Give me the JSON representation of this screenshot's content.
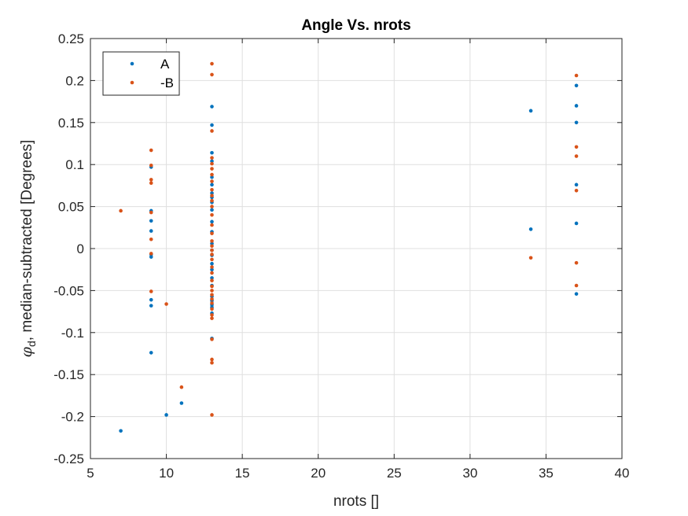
{
  "chart_data": {
    "type": "scatter",
    "title": "Angle Vs. nrots",
    "xlabel": "nrots []",
    "ylabel_symbol": "φ",
    "ylabel_subscript": "d",
    "ylabel_rest": ", median-subtracted [Degrees]",
    "xlim": [
      5,
      40
    ],
    "ylim": [
      -0.25,
      0.25
    ],
    "xticks": [
      5,
      10,
      15,
      20,
      25,
      30,
      35,
      40
    ],
    "yticks": [
      -0.25,
      -0.2,
      -0.15,
      -0.1,
      -0.05,
      0,
      0.05,
      0.1,
      0.15,
      0.2,
      0.25
    ],
    "xtick_labels": [
      "5",
      "10",
      "15",
      "20",
      "25",
      "30",
      "35",
      "40"
    ],
    "ytick_labels": [
      "-0.25",
      "-0.2",
      "-0.15",
      "-0.1",
      "-0.05",
      "0",
      "0.05",
      "0.1",
      "0.15",
      "0.2",
      "0.25"
    ],
    "grid": true,
    "legend_position": "top-left",
    "series": [
      {
        "name": "A",
        "color": "#0072BD",
        "x": [
          7,
          9,
          9,
          9,
          9,
          9,
          9,
          9,
          9,
          9,
          10,
          11,
          13,
          13,
          13,
          13,
          13,
          13,
          13,
          13,
          13,
          13,
          13,
          13,
          13,
          13,
          13,
          13,
          13,
          13,
          13,
          13,
          13,
          13,
          13,
          13,
          13,
          34,
          34,
          37,
          37,
          37,
          37,
          37,
          37
        ],
        "y": [
          -0.217,
          0.045,
          0.033,
          0.021,
          -0.007,
          -0.01,
          -0.061,
          -0.068,
          -0.124,
          0.097,
          -0.198,
          -0.184,
          0.169,
          0.147,
          0.114,
          0.104,
          0.085,
          0.076,
          0.066,
          0.061,
          0.055,
          0.046,
          0.032,
          0.02,
          0.006,
          -0.002,
          -0.008,
          -0.018,
          -0.025,
          -0.035,
          -0.044,
          -0.057,
          -0.062,
          -0.067,
          -0.07,
          -0.077,
          -0.107,
          0.164,
          0.023,
          0.194,
          0.17,
          0.15,
          0.076,
          0.03,
          -0.054
        ]
      },
      {
        "name": "-B",
        "color": "#D95319",
        "x": [
          7,
          9,
          9,
          9,
          9,
          9,
          9,
          9,
          9,
          10,
          11,
          13,
          13,
          13,
          13,
          13,
          13,
          13,
          13,
          13,
          13,
          13,
          13,
          13,
          13,
          13,
          13,
          13,
          13,
          13,
          13,
          13,
          13,
          13,
          13,
          13,
          13,
          13,
          13,
          13,
          13,
          13,
          13,
          13,
          13,
          13,
          34,
          37,
          37,
          37,
          37,
          37,
          37
        ],
        "y": [
          0.045,
          0.117,
          0.099,
          0.082,
          0.078,
          0.043,
          0.011,
          -0.006,
          -0.051,
          -0.066,
          -0.165,
          0.22,
          0.207,
          0.14,
          0.108,
          0.101,
          0.095,
          0.088,
          0.08,
          0.07,
          0.063,
          0.057,
          0.05,
          0.04,
          0.028,
          0.018,
          0.009,
          0.003,
          -0.002,
          -0.007,
          -0.013,
          -0.022,
          -0.029,
          -0.038,
          -0.045,
          -0.05,
          -0.055,
          -0.06,
          -0.065,
          -0.072,
          -0.079,
          -0.083,
          -0.108,
          -0.132,
          -0.136,
          -0.198,
          -0.011,
          0.206,
          0.121,
          0.11,
          0.069,
          -0.017,
          -0.044
        ]
      }
    ]
  }
}
